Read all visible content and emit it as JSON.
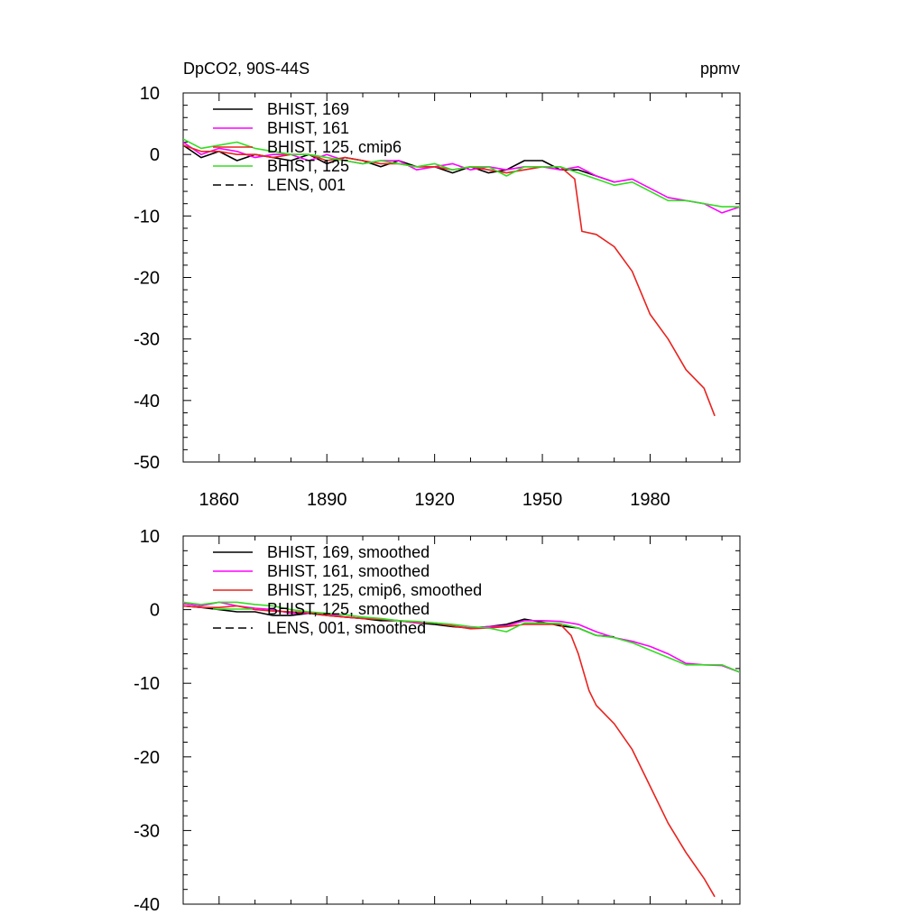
{
  "chart_data": [
    {
      "type": "line",
      "title": "DpCO2, 90S-44S",
      "units": "ppmv",
      "xlim": [
        1850,
        2005
      ],
      "ylim": [
        -50,
        10
      ],
      "yticks": [
        "10",
        "0",
        "-10",
        "-20",
        "-30",
        "-40",
        "-50"
      ],
      "xticks": [
        "1860",
        "1890",
        "1920",
        "1950",
        "1980"
      ],
      "legend": {
        "placement": "top-left",
        "entries": [
          {
            "label": "BHIST, 169",
            "color": "#000000",
            "dash": "solid"
          },
          {
            "label": "BHIST, 161",
            "color": "#ff00ff",
            "dash": "solid"
          },
          {
            "label": "BHIST, 125, cmip6",
            "color": "#e8231f",
            "dash": "solid"
          },
          {
            "label": "BHIST, 125",
            "color": "#33dd22",
            "dash": "solid"
          },
          {
            "label": "LENS, 001",
            "color": "#000000",
            "dash": "dashed"
          }
        ]
      },
      "series": [
        {
          "name": "BHIST, 169",
          "color": "#000000",
          "x": [
            1850,
            1855,
            1860,
            1865,
            1870,
            1875,
            1880,
            1885,
            1890,
            1895,
            1900,
            1905,
            1910,
            1915,
            1920,
            1925,
            1930,
            1935,
            1940,
            1945,
            1950,
            1955,
            1960,
            1965,
            1970
          ],
          "y": [
            1.5,
            -0.5,
            0.5,
            -1.0,
            0.0,
            -0.5,
            -1.0,
            0.0,
            -1.5,
            -0.5,
            -1.0,
            -2.0,
            -1.0,
            -2.0,
            -2.0,
            -3.0,
            -2.0,
            -3.0,
            -2.5,
            -1.0,
            -1.0,
            -2.5,
            -2.5,
            -3.5,
            -4.5
          ]
        },
        {
          "name": "BHIST, 161",
          "color": "#ff00ff",
          "x": [
            1850,
            1855,
            1860,
            1865,
            1870,
            1875,
            1880,
            1885,
            1890,
            1895,
            1900,
            1905,
            1910,
            1915,
            1920,
            1925,
            1930,
            1935,
            1940,
            1945,
            1950,
            1955,
            1960,
            1965,
            1970,
            1975,
            1980,
            1985,
            1990,
            1995,
            2000,
            2005
          ],
          "y": [
            2.0,
            0.0,
            1.0,
            0.5,
            -0.5,
            0.0,
            0.0,
            -1.0,
            0.0,
            -1.0,
            -1.5,
            -1.0,
            -1.0,
            -2.5,
            -2.0,
            -1.5,
            -2.5,
            -2.0,
            -2.5,
            -2.0,
            -2.0,
            -2.5,
            -2.0,
            -3.5,
            -4.5,
            -4.0,
            -5.5,
            -7.0,
            -7.5,
            -8.0,
            -9.5,
            -8.5
          ]
        },
        {
          "name": "BHIST, 125, cmip6",
          "color": "#e8231f",
          "x": [
            1850,
            1855,
            1860,
            1865,
            1870,
            1875,
            1880,
            1885,
            1890,
            1895,
            1900,
            1905,
            1910,
            1915,
            1920,
            1925,
            1930,
            1935,
            1940,
            1945,
            1950,
            1955,
            1959,
            1961,
            1965,
            1970,
            1975,
            1980,
            1985,
            1990,
            1995,
            1998
          ],
          "y": [
            1.5,
            0.5,
            0.5,
            0.0,
            0.0,
            -0.5,
            0.0,
            0.0,
            -1.0,
            -0.5,
            -1.0,
            -1.5,
            -1.5,
            -2.0,
            -2.0,
            -2.5,
            -2.0,
            -2.5,
            -3.0,
            -2.5,
            -2.0,
            -2.0,
            -4.0,
            -12.5,
            -13.0,
            -15.0,
            -19.0,
            -26.0,
            -30.0,
            -35.0,
            -38.0,
            -42.5
          ]
        },
        {
          "name": "BHIST, 125",
          "color": "#33dd22",
          "x": [
            1850,
            1855,
            1860,
            1865,
            1870,
            1875,
            1880,
            1885,
            1890,
            1895,
            1900,
            1905,
            1910,
            1915,
            1920,
            1925,
            1930,
            1935,
            1940,
            1945,
            1950,
            1955,
            1960,
            1965,
            1970,
            1975,
            1980,
            1985,
            1990,
            1995,
            2000,
            2005
          ],
          "y": [
            2.5,
            1.0,
            1.5,
            2.0,
            1.0,
            0.5,
            0.0,
            0.0,
            -0.5,
            -1.0,
            -1.5,
            -1.0,
            -1.5,
            -2.0,
            -1.5,
            -2.5,
            -2.0,
            -2.0,
            -3.5,
            -2.0,
            -2.0,
            -2.0,
            -3.0,
            -4.0,
            -5.0,
            -4.5,
            -6.0,
            -7.5,
            -7.5,
            -8.0,
            -8.5,
            -8.5
          ]
        }
      ]
    },
    {
      "type": "line",
      "title": "",
      "xlim": [
        1850,
        2005
      ],
      "ylim": [
        -40,
        10
      ],
      "yticks": [
        "10",
        "0",
        "-10",
        "-20",
        "-30",
        "-40"
      ],
      "xticks": [],
      "legend": {
        "placement": "top-left",
        "entries": [
          {
            "label": "BHIST, 169, smoothed",
            "color": "#000000",
            "dash": "solid"
          },
          {
            "label": "BHIST, 161, smoothed",
            "color": "#ff00ff",
            "dash": "solid"
          },
          {
            "label": "BHIST, 125, cmip6, smoothed",
            "color": "#e8231f",
            "dash": "solid"
          },
          {
            "label": "BHIST, 125, smoothed",
            "color": "#33dd22",
            "dash": "solid"
          },
          {
            "label": "LENS, 001, smoothed",
            "color": "#000000",
            "dash": "dashed"
          }
        ]
      },
      "series": [
        {
          "name": "BHIST, 169, smoothed",
          "color": "#000000",
          "x": [
            1850,
            1855,
            1860,
            1865,
            1870,
            1875,
            1880,
            1885,
            1890,
            1895,
            1900,
            1905,
            1910,
            1915,
            1920,
            1925,
            1930,
            1935,
            1940,
            1945,
            1950,
            1955,
            1960,
            1965,
            1970
          ],
          "y": [
            0.5,
            0.3,
            0.0,
            -0.3,
            -0.3,
            -0.8,
            -0.8,
            -0.5,
            -0.8,
            -1.0,
            -1.2,
            -1.5,
            -1.5,
            -1.8,
            -2.0,
            -2.3,
            -2.5,
            -2.3,
            -2.0,
            -1.3,
            -1.7,
            -2.2,
            -2.5,
            -3.5,
            -3.7
          ]
        },
        {
          "name": "BHIST, 161, smoothed",
          "color": "#ff00ff",
          "x": [
            1850,
            1855,
            1860,
            1865,
            1870,
            1875,
            1880,
            1885,
            1890,
            1895,
            1900,
            1905,
            1910,
            1915,
            1920,
            1925,
            1930,
            1935,
            1940,
            1945,
            1950,
            1955,
            1960,
            1965,
            1970,
            1975,
            1980,
            1985,
            1990,
            1995,
            2000,
            2005
          ],
          "y": [
            0.8,
            0.5,
            1.0,
            0.5,
            0.2,
            0.0,
            -0.5,
            -0.5,
            -0.5,
            -1.0,
            -1.2,
            -1.3,
            -1.5,
            -1.8,
            -1.8,
            -2.2,
            -2.5,
            -2.3,
            -2.2,
            -1.5,
            -1.5,
            -1.6,
            -2.0,
            -3.0,
            -3.8,
            -4.3,
            -5.0,
            -6.0,
            -7.3,
            -7.5,
            -7.6,
            -8.5
          ]
        },
        {
          "name": "BHIST, 125, cmip6, smoothed",
          "color": "#e8231f",
          "x": [
            1850,
            1855,
            1860,
            1865,
            1870,
            1875,
            1880,
            1885,
            1890,
            1895,
            1900,
            1905,
            1910,
            1915,
            1920,
            1925,
            1930,
            1935,
            1940,
            1945,
            1950,
            1955,
            1958,
            1960,
            1963,
            1965,
            1970,
            1975,
            1980,
            1985,
            1990,
            1995,
            1998
          ],
          "y": [
            0.5,
            0.3,
            0.3,
            0.5,
            0.0,
            -0.2,
            -0.3,
            -0.4,
            -0.8,
            -1.0,
            -1.2,
            -1.3,
            -1.5,
            -1.7,
            -1.8,
            -2.2,
            -2.6,
            -2.5,
            -2.3,
            -2.0,
            -2.0,
            -2.0,
            -3.5,
            -6.0,
            -11.0,
            -13.0,
            -15.5,
            -19.0,
            -24.0,
            -29.0,
            -33.0,
            -36.5,
            -39.0
          ]
        },
        {
          "name": "BHIST, 125, smoothed",
          "color": "#33dd22",
          "x": [
            1850,
            1855,
            1860,
            1865,
            1870,
            1875,
            1880,
            1885,
            1890,
            1895,
            1900,
            1905,
            1910,
            1915,
            1920,
            1925,
            1930,
            1935,
            1940,
            1945,
            1950,
            1955,
            1960,
            1965,
            1970,
            1975,
            1980,
            1985,
            1990,
            1995,
            2000,
            2005
          ],
          "y": [
            1.0,
            0.7,
            1.0,
            1.0,
            0.7,
            0.5,
            0.0,
            -0.3,
            -0.5,
            -0.7,
            -1.0,
            -1.2,
            -1.5,
            -1.6,
            -1.8,
            -2.0,
            -2.3,
            -2.5,
            -3.0,
            -1.8,
            -1.8,
            -1.9,
            -2.5,
            -3.5,
            -3.8,
            -4.5,
            -5.5,
            -6.5,
            -7.5,
            -7.5,
            -7.5,
            -8.5
          ]
        }
      ]
    }
  ]
}
